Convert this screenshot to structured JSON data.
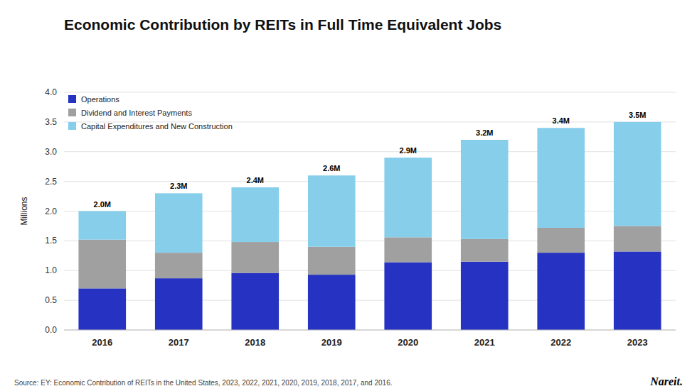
{
  "chart_data": {
    "type": "bar",
    "title": "Economic Contribution by REITs in Full Time Equivalent Jobs",
    "ylabel": "Millions",
    "categories": [
      "2016",
      "2017",
      "2018",
      "2019",
      "2020",
      "2021",
      "2022",
      "2023"
    ],
    "series": [
      {
        "name": "Operations",
        "color": "#2632c1",
        "values": [
          0.7,
          0.87,
          0.96,
          0.93,
          1.14,
          1.15,
          1.3,
          1.32
        ]
      },
      {
        "name": "Dividend and Interest Payments",
        "color": "#a0a0a0",
        "values": [
          0.82,
          0.43,
          0.52,
          0.47,
          0.42,
          0.38,
          0.42,
          0.43
        ]
      },
      {
        "name": "Capital Expenditures and New Construction",
        "color": "#87ceeb",
        "values": [
          0.48,
          1.0,
          0.92,
          1.2,
          1.34,
          1.67,
          1.68,
          1.75
        ]
      }
    ],
    "totals": {
      "values": [
        2.0,
        2.3,
        2.4,
        2.6,
        2.9,
        3.2,
        3.4,
        3.5
      ],
      "value_labels": [
        "2.0M",
        "2.3M",
        "2.4M",
        "2.6M",
        "2.9M",
        "3.2M",
        "3.4M",
        "3.5M"
      ]
    },
    "stacked": true,
    "ylim": [
      0,
      4.0
    ],
    "yticks": [
      {
        "value": 0.0,
        "label": "0.0"
      },
      0.5,
      {
        "value": 1.0,
        "label": "1.0"
      },
      1.5,
      {
        "value": 2.0,
        "label": "2.0"
      },
      2.5,
      {
        "value": 3.0,
        "label": "3.0"
      },
      3.5,
      {
        "value": 4.0,
        "label": "4.0"
      }
    ],
    "grid": true,
    "legend": "upper left",
    "annotations": [
      "Source: EY: Economic Contribution of REITs in the United States, 2023, 2022, 2021, 2020, 2019, 2018, 2017, and 2016.",
      "Nareit."
    ]
  }
}
